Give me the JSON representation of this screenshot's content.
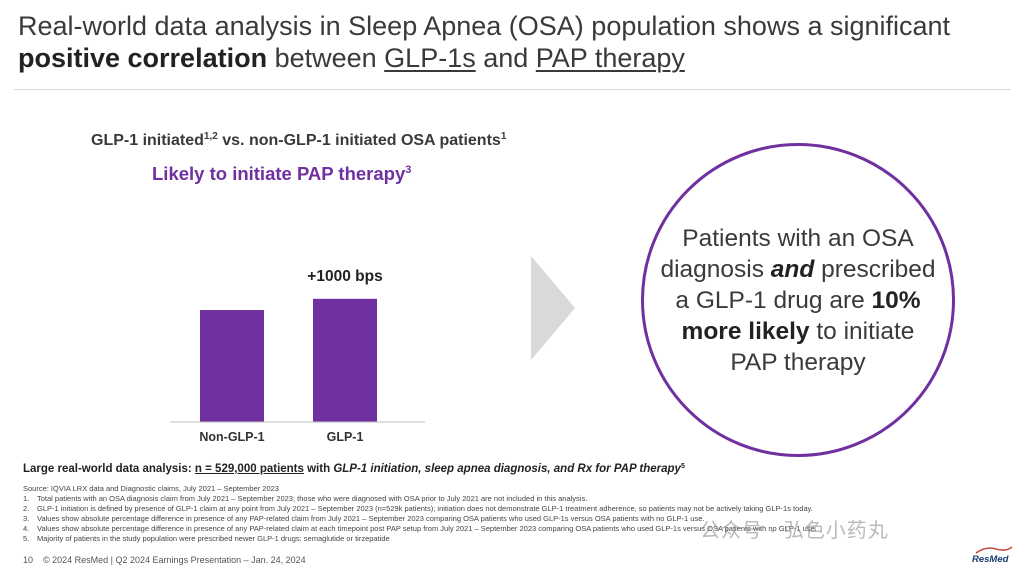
{
  "title": {
    "part1": "Real-world data analysis in Sleep Apnea (OSA) population shows a significant ",
    "bold": "positive correlation",
    "part2": " between ",
    "link1": "GLP-1s",
    "part3": " and ",
    "link2": "PAP therapy"
  },
  "chart_data": {
    "type": "bar",
    "title": "GLP-1 initiated vs. non-GLP-1 initiated OSA patients",
    "title_sup": "1,2",
    "title_end_sup": "1",
    "subtitle": "Likely to initiate PAP therapy",
    "subtitle_sup": "3",
    "categories": [
      "Non-GLP-1",
      "GLP-1"
    ],
    "values": [
      1.0,
      1.1
    ],
    "ylim": [
      0,
      1.25
    ],
    "annotation": "+1000 bps",
    "xlabel": "",
    "ylabel": "",
    "grid": false,
    "bar_color": "#7030a0"
  },
  "callout": {
    "line1": "Patients with an OSA diagnosis ",
    "and": "and",
    "line2": " prescribed a GLP-1 drug are ",
    "bold": "10% more likely",
    "line3": " to initiate PAP therapy"
  },
  "summary": {
    "prefix": "Large real-world data analysis: ",
    "n": "n = 529,000 patients",
    "mid": " with ",
    "italic": "GLP-1 initiation, sleep apnea diagnosis, and Rx for PAP therapy",
    "sup": "5"
  },
  "source": "Source: IQVIA LRX data and Diagnostic claims, July 2021 – September 2023",
  "footnotes": [
    {
      "num": "1.",
      "text": "Total patients with an OSA diagnosis claim from July 2021 – September 2023; those who were diagnosed with OSA prior to July 2021 are not included in this analysis."
    },
    {
      "num": "2.",
      "text": "GLP-1 initiation is defined by presence of GLP-1 claim at any point from July 2021 – September 2023 (n=529k patients); initiation does not demonstrate GLP-1 treatment adherence, so patients may not be actively taking GLP-1s today."
    },
    {
      "num": "3.",
      "text": "Values show absolute percentage difference in presence of any PAP-related claim from July 2021 – September 2023 comparing OSA patients who used GLP-1s versus OSA patients with no GLP-1 use."
    },
    {
      "num": "4.",
      "text": "Values show absolute percentage difference in presence of any PAP-related claim at each timepoint post PAP setup from July 2021 – September 2023 comparing OSA patients who used GLP-1s versus OSA patients with no GLP-1 use."
    },
    {
      "num": "5.",
      "text": "Majority of patients in the study population were prescribed newer GLP-1 drugs: semaglutide or tirzepatide"
    }
  ],
  "footer": {
    "page": "10",
    "text": "© 2024 ResMed | Q2 2024 Earnings Presentation – Jan. 24, 2024"
  },
  "watermark": "公众号 · 弘色小药丸",
  "logo_text": "ResMed",
  "colors": {
    "accent": "#7030a0",
    "arrow": "#d9d9d9",
    "text": "#3a3a3a"
  }
}
